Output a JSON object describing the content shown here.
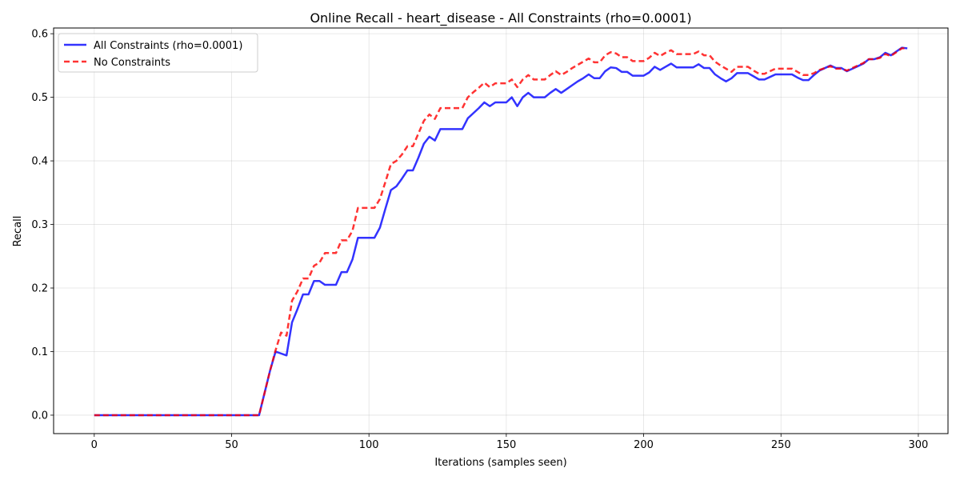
{
  "chart_data": {
    "type": "line",
    "title": "Online Recall - heart_disease - All Constraints (rho=0.0001)",
    "xlabel": "Iterations (samples seen)",
    "ylabel": "Recall",
    "xlim": [
      -14.8,
      310.8
    ],
    "ylim": [
      -0.029,
      0.609
    ],
    "xticks": [
      0,
      50,
      100,
      150,
      200,
      250,
      300
    ],
    "xtick_labels": [
      "0",
      "50",
      "100",
      "150",
      "200",
      "250",
      "300"
    ],
    "yticks": [
      0.0,
      0.1,
      0.2,
      0.3,
      0.4,
      0.5,
      0.6
    ],
    "ytick_labels": [
      "0.0",
      "0.1",
      "0.2",
      "0.3",
      "0.4",
      "0.5",
      "0.6"
    ],
    "grid": true,
    "legend_position": "top-left",
    "series": [
      {
        "name": "All Constraints (rho=0.0001)",
        "color": "#0000ff",
        "style": "solid",
        "points": [
          [
            0,
            0
          ],
          [
            10,
            0
          ],
          [
            20,
            0
          ],
          [
            30,
            0
          ],
          [
            40,
            0
          ],
          [
            50,
            0
          ],
          [
            60,
            0
          ],
          [
            62,
            0.035
          ],
          [
            64,
            0.07
          ],
          [
            66,
            0.1
          ],
          [
            68,
            0.097
          ],
          [
            70,
            0.094
          ],
          [
            72,
            0.146
          ],
          [
            74,
            0.167
          ],
          [
            76,
            0.19
          ],
          [
            78,
            0.19
          ],
          [
            80,
            0.211
          ],
          [
            82,
            0.211
          ],
          [
            84,
            0.205
          ],
          [
            86,
            0.205
          ],
          [
            88,
            0.205
          ],
          [
            90,
            0.225
          ],
          [
            92,
            0.225
          ],
          [
            94,
            0.245
          ],
          [
            96,
            0.279
          ],
          [
            98,
            0.279
          ],
          [
            100,
            0.279
          ],
          [
            102,
            0.279
          ],
          [
            104,
            0.295
          ],
          [
            106,
            0.325
          ],
          [
            108,
            0.354
          ],
          [
            110,
            0.36
          ],
          [
            112,
            0.372
          ],
          [
            114,
            0.385
          ],
          [
            116,
            0.385
          ],
          [
            118,
            0.405
          ],
          [
            120,
            0.427
          ],
          [
            122,
            0.438
          ],
          [
            124,
            0.432
          ],
          [
            126,
            0.45
          ],
          [
            128,
            0.45
          ],
          [
            130,
            0.45
          ],
          [
            132,
            0.45
          ],
          [
            134,
            0.45
          ],
          [
            136,
            0.467
          ],
          [
            138,
            0.475
          ],
          [
            140,
            0.483
          ],
          [
            142,
            0.492
          ],
          [
            144,
            0.486
          ],
          [
            146,
            0.492
          ],
          [
            148,
            0.492
          ],
          [
            150,
            0.492
          ],
          [
            152,
            0.5
          ],
          [
            154,
            0.486
          ],
          [
            156,
            0.5
          ],
          [
            158,
            0.507
          ],
          [
            160,
            0.5
          ],
          [
            162,
            0.5
          ],
          [
            164,
            0.5
          ],
          [
            166,
            0.507
          ],
          [
            168,
            0.513
          ],
          [
            170,
            0.507
          ],
          [
            172,
            0.513
          ],
          [
            174,
            0.519
          ],
          [
            176,
            0.525
          ],
          [
            178,
            0.53
          ],
          [
            180,
            0.536
          ],
          [
            182,
            0.53
          ],
          [
            184,
            0.53
          ],
          [
            186,
            0.541
          ],
          [
            188,
            0.547
          ],
          [
            190,
            0.546
          ],
          [
            192,
            0.54
          ],
          [
            194,
            0.54
          ],
          [
            196,
            0.534
          ],
          [
            198,
            0.534
          ],
          [
            200,
            0.534
          ],
          [
            202,
            0.539
          ],
          [
            204,
            0.548
          ],
          [
            206,
            0.543
          ],
          [
            208,
            0.548
          ],
          [
            210,
            0.553
          ],
          [
            212,
            0.547
          ],
          [
            214,
            0.547
          ],
          [
            216,
            0.547
          ],
          [
            218,
            0.547
          ],
          [
            220,
            0.552
          ],
          [
            222,
            0.546
          ],
          [
            224,
            0.546
          ],
          [
            226,
            0.536
          ],
          [
            228,
            0.53
          ],
          [
            230,
            0.525
          ],
          [
            232,
            0.53
          ],
          [
            234,
            0.538
          ],
          [
            236,
            0.538
          ],
          [
            238,
            0.538
          ],
          [
            240,
            0.533
          ],
          [
            242,
            0.528
          ],
          [
            244,
            0.528
          ],
          [
            246,
            0.532
          ],
          [
            248,
            0.536
          ],
          [
            250,
            0.536
          ],
          [
            252,
            0.536
          ],
          [
            254,
            0.536
          ],
          [
            256,
            0.531
          ],
          [
            258,
            0.527
          ],
          [
            260,
            0.527
          ],
          [
            262,
            0.535
          ],
          [
            264,
            0.542
          ],
          [
            266,
            0.546
          ],
          [
            268,
            0.55
          ],
          [
            270,
            0.546
          ],
          [
            272,
            0.546
          ],
          [
            274,
            0.541
          ],
          [
            276,
            0.545
          ],
          [
            278,
            0.549
          ],
          [
            280,
            0.553
          ],
          [
            282,
            0.56
          ],
          [
            284,
            0.56
          ],
          [
            286,
            0.563
          ],
          [
            288,
            0.57
          ],
          [
            290,
            0.566
          ],
          [
            292,
            0.572
          ],
          [
            294,
            0.578
          ],
          [
            296,
            0.577
          ]
        ]
      },
      {
        "name": "No Constraints",
        "color": "#ff0000",
        "style": "dashed",
        "points": [
          [
            0,
            0
          ],
          [
            10,
            0
          ],
          [
            20,
            0
          ],
          [
            30,
            0
          ],
          [
            40,
            0
          ],
          [
            50,
            0
          ],
          [
            60,
            0
          ],
          [
            62,
            0.035
          ],
          [
            64,
            0.07
          ],
          [
            66,
            0.102
          ],
          [
            68,
            0.13
          ],
          [
            70,
            0.125
          ],
          [
            72,
            0.18
          ],
          [
            74,
            0.195
          ],
          [
            76,
            0.215
          ],
          [
            78,
            0.215
          ],
          [
            80,
            0.235
          ],
          [
            82,
            0.24
          ],
          [
            84,
            0.255
          ],
          [
            86,
            0.255
          ],
          [
            88,
            0.255
          ],
          [
            90,
            0.275
          ],
          [
            92,
            0.275
          ],
          [
            94,
            0.29
          ],
          [
            96,
            0.326
          ],
          [
            98,
            0.326
          ],
          [
            100,
            0.326
          ],
          [
            102,
            0.326
          ],
          [
            104,
            0.34
          ],
          [
            106,
            0.367
          ],
          [
            108,
            0.395
          ],
          [
            110,
            0.4
          ],
          [
            112,
            0.41
          ],
          [
            114,
            0.423
          ],
          [
            116,
            0.423
          ],
          [
            118,
            0.443
          ],
          [
            120,
            0.463
          ],
          [
            122,
            0.473
          ],
          [
            124,
            0.466
          ],
          [
            126,
            0.483
          ],
          [
            128,
            0.483
          ],
          [
            130,
            0.483
          ],
          [
            132,
            0.483
          ],
          [
            134,
            0.483
          ],
          [
            136,
            0.5
          ],
          [
            138,
            0.508
          ],
          [
            140,
            0.515
          ],
          [
            142,
            0.523
          ],
          [
            144,
            0.516
          ],
          [
            146,
            0.522
          ],
          [
            148,
            0.522
          ],
          [
            150,
            0.522
          ],
          [
            152,
            0.528
          ],
          [
            154,
            0.516
          ],
          [
            156,
            0.528
          ],
          [
            158,
            0.535
          ],
          [
            160,
            0.528
          ],
          [
            162,
            0.528
          ],
          [
            164,
            0.528
          ],
          [
            166,
            0.535
          ],
          [
            168,
            0.541
          ],
          [
            170,
            0.535
          ],
          [
            172,
            0.54
          ],
          [
            174,
            0.546
          ],
          [
            176,
            0.551
          ],
          [
            178,
            0.556
          ],
          [
            180,
            0.561
          ],
          [
            182,
            0.555
          ],
          [
            184,
            0.555
          ],
          [
            186,
            0.566
          ],
          [
            188,
            0.571
          ],
          [
            190,
            0.569
          ],
          [
            192,
            0.563
          ],
          [
            194,
            0.563
          ],
          [
            196,
            0.557
          ],
          [
            198,
            0.557
          ],
          [
            200,
            0.557
          ],
          [
            202,
            0.562
          ],
          [
            204,
            0.57
          ],
          [
            206,
            0.565
          ],
          [
            208,
            0.57
          ],
          [
            210,
            0.574
          ],
          [
            212,
            0.568
          ],
          [
            214,
            0.568
          ],
          [
            216,
            0.568
          ],
          [
            218,
            0.568
          ],
          [
            220,
            0.572
          ],
          [
            222,
            0.566
          ],
          [
            224,
            0.566
          ],
          [
            226,
            0.556
          ],
          [
            228,
            0.55
          ],
          [
            230,
            0.545
          ],
          [
            232,
            0.54
          ],
          [
            234,
            0.548
          ],
          [
            236,
            0.548
          ],
          [
            238,
            0.548
          ],
          [
            240,
            0.542
          ],
          [
            242,
            0.537
          ],
          [
            244,
            0.537
          ],
          [
            246,
            0.541
          ],
          [
            248,
            0.545
          ],
          [
            250,
            0.545
          ],
          [
            252,
            0.545
          ],
          [
            254,
            0.545
          ],
          [
            256,
            0.54
          ],
          [
            258,
            0.535
          ],
          [
            260,
            0.535
          ],
          [
            262,
            0.538
          ],
          [
            264,
            0.543
          ],
          [
            266,
            0.546
          ],
          [
            268,
            0.549
          ],
          [
            270,
            0.545
          ],
          [
            272,
            0.545
          ],
          [
            274,
            0.542
          ],
          [
            276,
            0.546
          ],
          [
            278,
            0.55
          ],
          [
            280,
            0.554
          ],
          [
            282,
            0.56
          ],
          [
            284,
            0.56
          ],
          [
            286,
            0.562
          ],
          [
            288,
            0.568
          ],
          [
            290,
            0.565
          ],
          [
            292,
            0.571
          ],
          [
            294,
            0.577
          ],
          [
            296,
            0.577
          ]
        ]
      }
    ]
  }
}
